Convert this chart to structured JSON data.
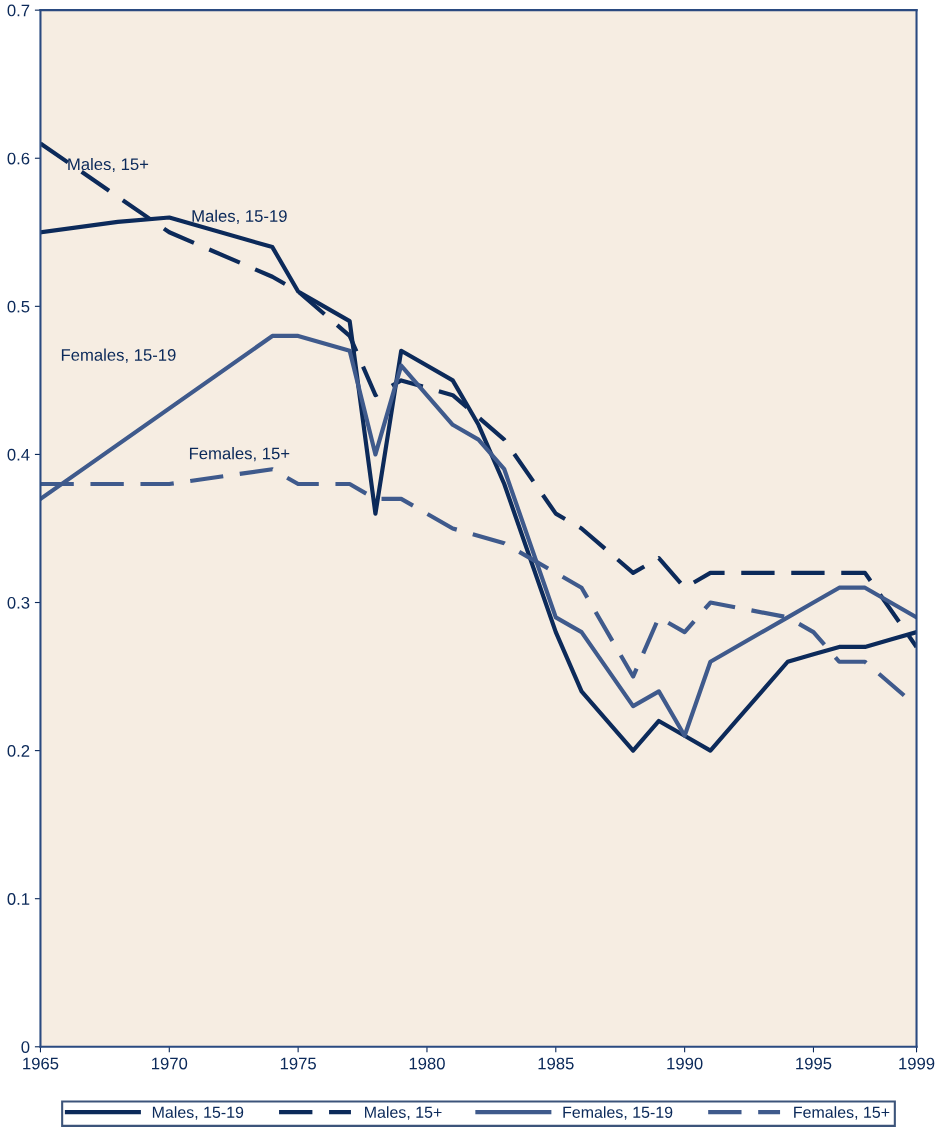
{
  "chart_data": {
    "type": "line",
    "series": [
      {
        "name": "Males, 15-19",
        "color": "#0c2a5a",
        "line_style": "solid",
        "x": [
          1965,
          1968,
          1970,
          1974,
          1975,
          1976,
          1977,
          1978,
          1979,
          1981,
          1982,
          1983,
          1985,
          1986,
          1988,
          1989,
          1990,
          1991,
          1992,
          1993,
          1994,
          1995,
          1996,
          1997,
          1998,
          1999
        ],
        "values": [
          0.55,
          0.557,
          0.56,
          0.54,
          0.51,
          0.5,
          0.49,
          0.36,
          0.47,
          0.45,
          0.42,
          0.38,
          0.28,
          0.24,
          0.2,
          0.22,
          0.21,
          0.2,
          0.22,
          0.24,
          0.26,
          0.265,
          0.27,
          0.27,
          0.275,
          0.28
        ]
      },
      {
        "name": "Males, 15+",
        "color": "#0c2a5a",
        "line_style": "dashed",
        "x": [
          1965,
          1970,
          1974,
          1975,
          1977,
          1978,
          1979,
          1981,
          1983,
          1985,
          1986,
          1988,
          1989,
          1990,
          1991,
          1997,
          1999
        ],
        "values": [
          0.61,
          0.55,
          0.52,
          0.51,
          0.48,
          0.44,
          0.45,
          0.44,
          0.41,
          0.36,
          0.35,
          0.32,
          0.33,
          0.31,
          0.32,
          0.32,
          0.27
        ]
      },
      {
        "name": "Females, 15-19",
        "color": "#3f5a8c",
        "line_style": "solid",
        "x": [
          1965,
          1974,
          1975,
          1977,
          1978,
          1979,
          1981,
          1982,
          1983,
          1985,
          1986,
          1988,
          1989,
          1990,
          1991,
          1994,
          1995,
          1996,
          1997,
          1999
        ],
        "values": [
          0.37,
          0.48,
          0.48,
          0.47,
          0.4,
          0.46,
          0.42,
          0.41,
          0.39,
          0.29,
          0.28,
          0.23,
          0.24,
          0.21,
          0.26,
          0.29,
          0.3,
          0.31,
          0.31,
          0.29
        ]
      },
      {
        "name": "Females, 15+",
        "color": "#3f5a8c",
        "line_style": "dashed",
        "x": [
          1965,
          1970,
          1974,
          1975,
          1977,
          1978,
          1979,
          1981,
          1983,
          1985,
          1986,
          1988,
          1989,
          1990,
          1991,
          1994,
          1995,
          1996,
          1997,
          1999
        ],
        "values": [
          0.38,
          0.38,
          0.39,
          0.38,
          0.38,
          0.37,
          0.37,
          0.35,
          0.34,
          0.32,
          0.31,
          0.25,
          0.29,
          0.28,
          0.3,
          0.29,
          0.28,
          0.26,
          0.26,
          0.23
        ]
      }
    ],
    "annotations": [
      "Males, 15+",
      "Males, 15-19",
      "Females, 15-19",
      "Females, 15+"
    ],
    "xlim": [
      1965,
      1999
    ],
    "ylim": [
      0,
      0.7
    ],
    "xticks": [
      1965,
      1970,
      1975,
      1980,
      1985,
      1990,
      1995,
      1999
    ],
    "yticks": [
      0,
      0.1,
      0.2,
      0.3,
      0.4,
      0.5,
      0.6,
      0.7
    ],
    "grid": false,
    "legend": "bottom",
    "marker": "none"
  }
}
